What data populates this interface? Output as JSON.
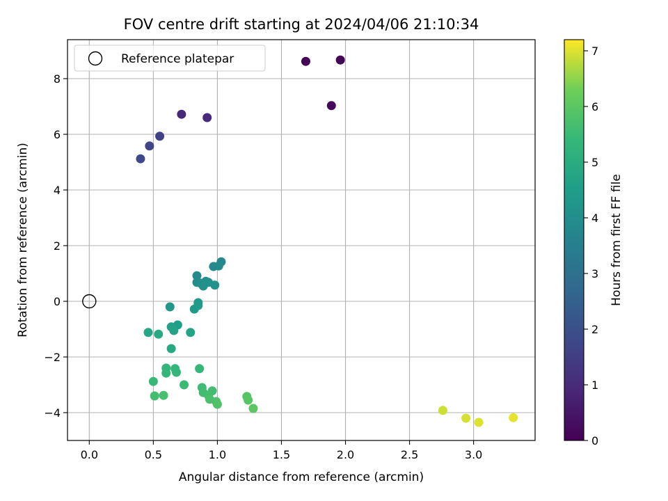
{
  "chart_data": {
    "type": "scatter",
    "title": "FOV centre drift starting at 2024/04/06 21:10:34",
    "xlabel": "Angular distance from reference (arcmin)",
    "ylabel": "Rotation from reference (arcmin)",
    "xlim": [
      -0.17,
      3.48
    ],
    "ylim": [
      -5.0,
      9.4
    ],
    "xticks": [
      "0.0",
      "0.5",
      "1.0",
      "1.5",
      "2.0",
      "2.5",
      "3.0"
    ],
    "xtick_values": [
      0.0,
      0.5,
      1.0,
      1.5,
      2.0,
      2.5,
      3.0
    ],
    "yticks": [
      "−4",
      "−2",
      "0",
      "2",
      "4",
      "6",
      "8"
    ],
    "ytick_values": [
      -4,
      -2,
      0,
      2,
      4,
      6,
      8
    ],
    "grid": true,
    "legend": {
      "position": "top-left",
      "entries": [
        {
          "label": "Reference platepar",
          "marker": "open-circle",
          "x": 0,
          "y": 0
        }
      ]
    },
    "colorbar": {
      "label": "Hours from first FF file",
      "range": [
        0,
        7.2
      ],
      "ticks": [
        "0",
        "1",
        "2",
        "3",
        "4",
        "5",
        "6",
        "7"
      ],
      "tick_values": [
        0,
        1,
        2,
        3,
        4,
        5,
        6,
        7
      ],
      "colormap": "viridis"
    },
    "points": [
      {
        "x": 1.69,
        "y": 8.62,
        "t": 0.05
      },
      {
        "x": 1.96,
        "y": 8.67,
        "t": 0.1
      },
      {
        "x": 1.89,
        "y": 7.03,
        "t": 0.15
      },
      {
        "x": 0.72,
        "y": 6.72,
        "t": 0.9
      },
      {
        "x": 0.92,
        "y": 6.6,
        "t": 0.95
      },
      {
        "x": 0.55,
        "y": 5.93,
        "t": 1.6
      },
      {
        "x": 0.47,
        "y": 5.58,
        "t": 1.7
      },
      {
        "x": 0.4,
        "y": 5.12,
        "t": 1.8
      },
      {
        "x": 1.03,
        "y": 1.42,
        "t": 3.8
      },
      {
        "x": 0.97,
        "y": 1.25,
        "t": 3.85
      },
      {
        "x": 1.01,
        "y": 1.27,
        "t": 3.9
      },
      {
        "x": 0.84,
        "y": 0.92,
        "t": 3.9
      },
      {
        "x": 0.84,
        "y": 0.68,
        "t": 3.95
      },
      {
        "x": 0.87,
        "y": 0.65,
        "t": 4.0
      },
      {
        "x": 0.91,
        "y": 0.72,
        "t": 4.0
      },
      {
        "x": 0.89,
        "y": 0.55,
        "t": 4.05
      },
      {
        "x": 0.93,
        "y": 0.68,
        "t": 4.05
      },
      {
        "x": 0.98,
        "y": 0.58,
        "t": 4.1
      },
      {
        "x": 0.63,
        "y": -0.2,
        "t": 4.3
      },
      {
        "x": 0.85,
        "y": -0.05,
        "t": 4.35
      },
      {
        "x": 0.85,
        "y": -0.15,
        "t": 4.4
      },
      {
        "x": 0.82,
        "y": -0.28,
        "t": 4.45
      },
      {
        "x": 0.69,
        "y": -0.85,
        "t": 4.5
      },
      {
        "x": 0.64,
        "y": -0.92,
        "t": 4.6
      },
      {
        "x": 0.66,
        "y": -1.05,
        "t": 4.65
      },
      {
        "x": 0.79,
        "y": -1.12,
        "t": 4.7
      },
      {
        "x": 0.46,
        "y": -1.12,
        "t": 4.8
      },
      {
        "x": 0.54,
        "y": -1.18,
        "t": 4.85
      },
      {
        "x": 0.64,
        "y": -1.7,
        "t": 4.9
      },
      {
        "x": 0.6,
        "y": -2.4,
        "t": 5.3
      },
      {
        "x": 0.67,
        "y": -2.42,
        "t": 5.3
      },
      {
        "x": 0.6,
        "y": -2.58,
        "t": 5.35
      },
      {
        "x": 0.68,
        "y": -2.55,
        "t": 5.35
      },
      {
        "x": 0.86,
        "y": -2.42,
        "t": 5.4
      },
      {
        "x": 0.5,
        "y": -2.88,
        "t": 5.45
      },
      {
        "x": 0.74,
        "y": -3.0,
        "t": 5.5
      },
      {
        "x": 0.88,
        "y": -3.1,
        "t": 5.55
      },
      {
        "x": 0.96,
        "y": -3.22,
        "t": 5.6
      },
      {
        "x": 0.89,
        "y": -3.28,
        "t": 5.6
      },
      {
        "x": 0.93,
        "y": -3.38,
        "t": 5.65
      },
      {
        "x": 0.51,
        "y": -3.4,
        "t": 5.65
      },
      {
        "x": 0.58,
        "y": -3.38,
        "t": 5.7
      },
      {
        "x": 0.94,
        "y": -3.52,
        "t": 5.75
      },
      {
        "x": 0.99,
        "y": -3.6,
        "t": 5.8
      },
      {
        "x": 1.0,
        "y": -3.7,
        "t": 5.85
      },
      {
        "x": 1.23,
        "y": -3.42,
        "t": 5.9
      },
      {
        "x": 1.24,
        "y": -3.55,
        "t": 5.95
      },
      {
        "x": 1.28,
        "y": -3.85,
        "t": 6.0
      },
      {
        "x": 2.76,
        "y": -3.92,
        "t": 6.9
      },
      {
        "x": 2.94,
        "y": -4.2,
        "t": 6.95
      },
      {
        "x": 3.04,
        "y": -4.35,
        "t": 7.0
      },
      {
        "x": 3.31,
        "y": -4.18,
        "t": 7.05
      }
    ]
  }
}
